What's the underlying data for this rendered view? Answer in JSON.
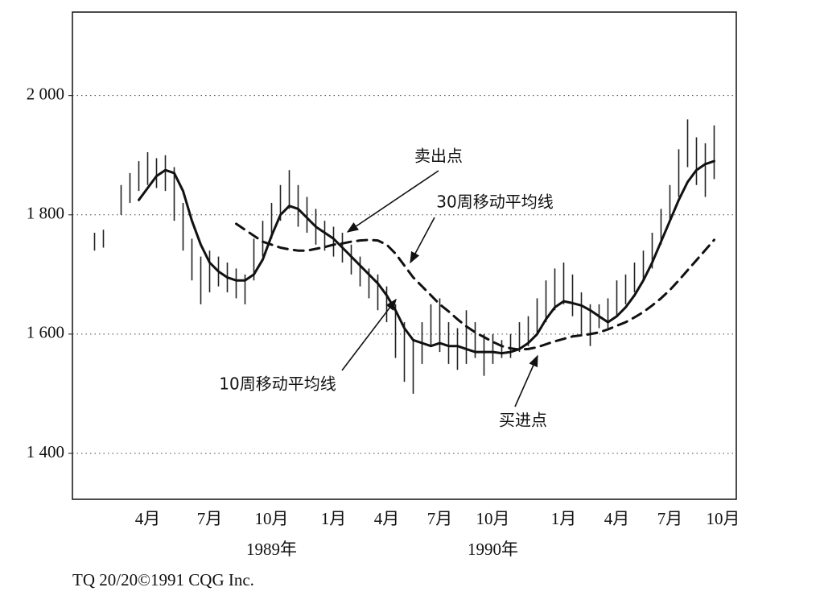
{
  "chart_data": {
    "type": "hl_bars",
    "categories": [
      null,
      null,
      null,
      null,
      null,
      null,
      null,
      null,
      "4月",
      null,
      null,
      null,
      null,
      null,
      null,
      "7月",
      null,
      null,
      null,
      null,
      null,
      null,
      "10月",
      null,
      null,
      null,
      null,
      null,
      null,
      "1月",
      null,
      null,
      null,
      null,
      null,
      "4月",
      null,
      null,
      null,
      null,
      null,
      "7月",
      null,
      null,
      null,
      null,
      null,
      "10月",
      null,
      null,
      null,
      null,
      null,
      null,
      null,
      "1月",
      null,
      null,
      null,
      null,
      null,
      "4月",
      null,
      null,
      null,
      null,
      null,
      "7月",
      null,
      null,
      null,
      null,
      null,
      "10月",
      null
    ],
    "high": [
      null,
      null,
      1770,
      1775,
      null,
      1850,
      1870,
      1890,
      1905,
      1895,
      1900,
      1880,
      1820,
      1760,
      1730,
      1740,
      1730,
      1720,
      1710,
      1700,
      1760,
      1790,
      1820,
      1850,
      1875,
      1850,
      1830,
      1810,
      1790,
      1780,
      1770,
      1750,
      1730,
      1710,
      1700,
      1680,
      1650,
      1620,
      1590,
      1620,
      1650,
      1660,
      1620,
      1610,
      1640,
      1620,
      1600,
      1600,
      1590,
      1600,
      1620,
      1630,
      1660,
      1690,
      1710,
      1720,
      1700,
      1670,
      1650,
      1650,
      1660,
      1690,
      1700,
      1720,
      1740,
      1770,
      1810,
      1850,
      1910,
      1960,
      1930,
      1920,
      1950,
      null,
      null
    ],
    "low": [
      null,
      null,
      1740,
      1745,
      null,
      1800,
      1820,
      1840,
      1850,
      1845,
      1840,
      1790,
      1740,
      1690,
      1650,
      1670,
      1680,
      1670,
      1660,
      1650,
      1690,
      1730,
      1760,
      1790,
      1810,
      1780,
      1770,
      1750,
      1740,
      1730,
      1720,
      1700,
      1680,
      1660,
      1640,
      1620,
      1560,
      1520,
      1500,
      1550,
      1580,
      1570,
      1550,
      1540,
      1550,
      1560,
      1530,
      1550,
      1560,
      1560,
      1570,
      1580,
      1600,
      1620,
      1640,
      1650,
      1630,
      1600,
      1580,
      1610,
      1610,
      1630,
      1650,
      1670,
      1690,
      1710,
      1750,
      1790,
      1830,
      1880,
      1850,
      1830,
      1860,
      null,
      null
    ],
    "lines": [
      {
        "dash": false,
        "color": "#111111",
        "values": [
          null,
          null,
          null,
          null,
          null,
          null,
          null,
          1825,
          1845,
          1865,
          1875,
          1870,
          1840,
          1790,
          1750,
          1720,
          1705,
          1695,
          1690,
          1690,
          1700,
          1725,
          1765,
          1800,
          1815,
          1810,
          1795,
          1780,
          1770,
          1760,
          1745,
          1730,
          1715,
          1700,
          1685,
          1665,
          1640,
          1610,
          1590,
          1585,
          1580,
          1585,
          1580,
          1580,
          1575,
          1570,
          1570,
          1570,
          1568,
          1570,
          1575,
          1585,
          1600,
          1625,
          1645,
          1655,
          1652,
          1648,
          1640,
          1630,
          1620,
          1630,
          1645,
          1665,
          1690,
          1720,
          1755,
          1790,
          1825,
          1855,
          1875,
          1885,
          1890,
          null,
          null
        ]
      },
      {
        "dash": true,
        "color": "#111111",
        "values": [
          null,
          null,
          null,
          null,
          null,
          null,
          null,
          null,
          null,
          null,
          null,
          null,
          null,
          null,
          null,
          null,
          null,
          null,
          1785,
          1775,
          1765,
          1755,
          1750,
          1745,
          1742,
          1740,
          1740,
          1743,
          1746,
          1750,
          1752,
          1755,
          1757,
          1758,
          1757,
          1750,
          1735,
          1715,
          1695,
          1680,
          1665,
          1650,
          1638,
          1625,
          1613,
          1603,
          1595,
          1587,
          1580,
          1576,
          1574,
          1575,
          1578,
          1583,
          1588,
          1592,
          1596,
          1598,
          1600,
          1603,
          1608,
          1614,
          1620,
          1628,
          1637,
          1648,
          1660,
          1674,
          1690,
          1707,
          1724,
          1741,
          1758,
          null,
          null
        ]
      }
    ],
    "bar_color": "#222222",
    "ylim": [
      1323,
      2140
    ],
    "yticks": [
      {
        "value": 1400,
        "label": "1 400"
      },
      {
        "value": 1600,
        "label": "1 600"
      },
      {
        "value": 1800,
        "label": "1 800"
      },
      {
        "value": 2000,
        "label": "2 000"
      }
    ],
    "grid": true,
    "year_labels": [
      "1989年",
      "1990年"
    ],
    "annotations": [
      "卖出点",
      "30周移动平均线",
      "10周移动平均线",
      "买进点"
    ],
    "footer": "TQ 20/20©1991 CQG Inc."
  }
}
